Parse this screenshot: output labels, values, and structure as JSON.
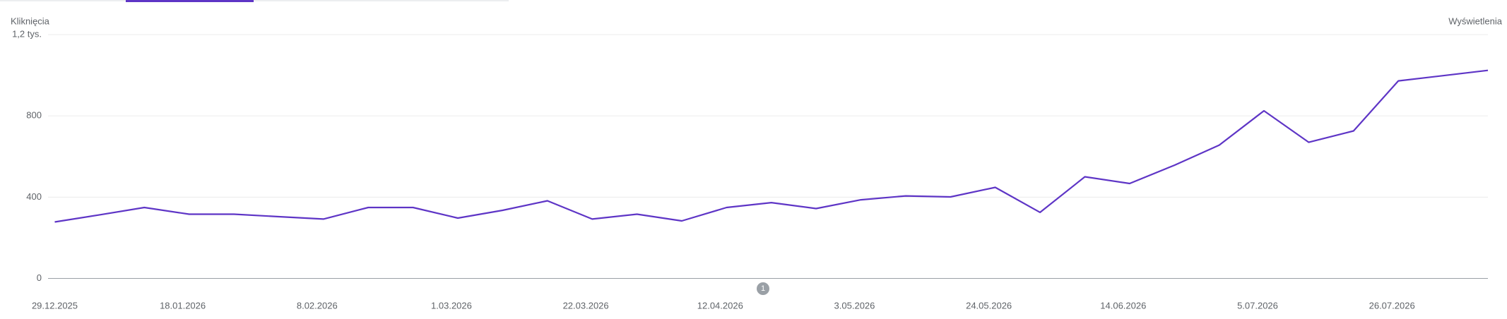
{
  "chart_data": {
    "type": "line",
    "y_label": "Kliknięcia",
    "y2_label": "Wyświetlenia",
    "annotation": "1",
    "x": [
      "29.12.2025",
      "5.01.2026",
      "12.01.2026",
      "19.01.2026",
      "26.01.2026",
      "2.02.2026",
      "9.02.2026",
      "16.02.2026",
      "23.02.2026",
      "2.03.2026",
      "9.03.2026",
      "16.03.2026",
      "23.03.2026",
      "30.03.2026",
      "6.04.2026",
      "13.04.2026",
      "20.04.2026",
      "27.04.2026",
      "4.05.2026",
      "11.05.2026",
      "18.05.2026",
      "25.05.2026",
      "1.06.2026",
      "8.06.2026",
      "15.06.2026",
      "22.06.2026",
      "29.06.2026",
      "6.07.2026",
      "13.07.2026",
      "20.07.2026",
      "27.07.2026",
      "3.08.2026",
      "10.08.2026"
    ],
    "series": [
      {
        "name": "Kliknięcia",
        "color": "#5e35c6",
        "values": [
          278,
          313,
          349,
          316,
          316,
          304,
          292,
          349,
          349,
          297,
          335,
          382,
          292,
          316,
          283,
          349,
          373,
          344,
          387,
          406,
          401,
          448,
          325,
          500,
          467,
          557,
          656,
          825,
          670,
          726,
          972,
          998,
          1024
        ]
      }
    ],
    "xlim": [
      "29.12.2025",
      "10.08.2026"
    ],
    "xticks": [
      "29.12.2025",
      "18.01.2026",
      "8.02.2026",
      "1.03.2026",
      "22.03.2026",
      "12.04.2026",
      "3.05.2026",
      "24.05.2026",
      "14.06.2026",
      "5.07.2026",
      "26.07.2026"
    ],
    "ylim": [
      0,
      1200
    ],
    "yticks": [
      0,
      400,
      800,
      {
        "value": 1200,
        "label": "1,2 tys."
      }
    ],
    "grid": true
  }
}
